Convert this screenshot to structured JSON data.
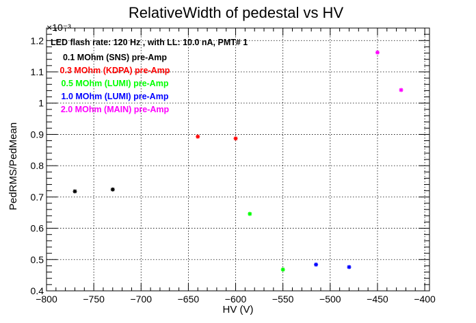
{
  "chart_data": {
    "type": "scatter",
    "title": "RelativeWidth of pedestal vs HV",
    "xlabel": "HV (V)",
    "ylabel": "PedRMS/PedMean",
    "y_exponent_label": "×10⁻³",
    "xlim": [
      -800,
      -395
    ],
    "ylim": [
      0.4,
      1.24
    ],
    "xticks": [
      -800,
      -750,
      -700,
      -650,
      -600,
      -550,
      -500,
      -450,
      -400
    ],
    "xtick_labels": [
      "−800",
      "−750",
      "−700",
      "−650",
      "−600",
      "−550",
      "−500",
      "−450",
      "−400"
    ],
    "yticks": [
      0.4,
      0.5,
      0.6,
      0.7,
      0.8,
      0.9,
      1.0,
      1.1,
      1.2
    ],
    "ytick_labels": [
      "0.4",
      "0.5",
      "0.6",
      "0.7",
      "0.8",
      "0.9",
      "1",
      "1.1",
      "1.2"
    ],
    "grid": true,
    "headline": "LED flash rate: 120 Hz , with LL: 10.0 nA, PMT# 1",
    "series": [
      {
        "name": "0.1 MOhm (SNS) pre-Amp",
        "color": "#000000",
        "x": [
          -770,
          -730
        ],
        "y": [
          0.718,
          0.724
        ]
      },
      {
        "name": "0.3 MOhm (KDPA) pre-Amp",
        "color": "#ff0000",
        "x": [
          -640,
          -600
        ],
        "y": [
          0.893,
          0.887
        ]
      },
      {
        "name": "0.5 MOhm (LUMI) pre-Amp",
        "color": "#00ff00",
        "x": [
          -585,
          -550
        ],
        "y": [
          0.646,
          0.468
        ]
      },
      {
        "name": "1.0 MOhm (LUMI) pre-Amp",
        "color": "#0000ff",
        "x": [
          -515,
          -480
        ],
        "y": [
          0.484,
          0.476
        ]
      },
      {
        "name": "2.0 MOhm (MAIN) pre-Amp",
        "color": "#ff00ff",
        "x": [
          -450,
          -425
        ],
        "y": [
          1.162,
          1.042
        ]
      }
    ]
  }
}
